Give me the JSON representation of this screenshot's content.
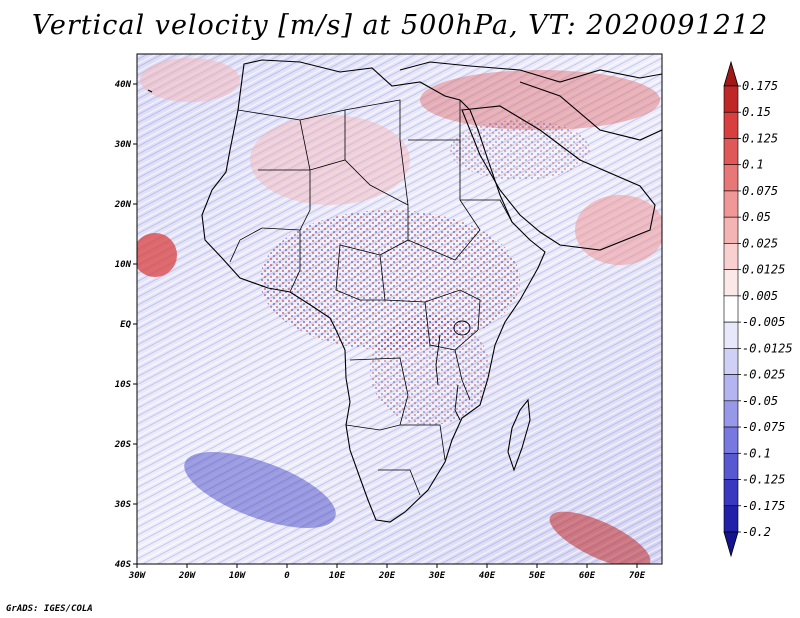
{
  "title": "Vertical velocity [m/s] at 500hPa, VT: 2020091212",
  "credit": "GrADS: IGES/COLA",
  "map": {
    "lon_range": [
      -30,
      75
    ],
    "lat_range": [
      -40,
      45
    ],
    "lat_ticks": [
      {
        "value": 40,
        "label": "40N"
      },
      {
        "value": 30,
        "label": "30N"
      },
      {
        "value": 20,
        "label": "20N"
      },
      {
        "value": 10,
        "label": "10N"
      },
      {
        "value": 0,
        "label": "EQ"
      },
      {
        "value": -10,
        "label": "10S"
      },
      {
        "value": -20,
        "label": "20S"
      },
      {
        "value": -30,
        "label": "30S"
      },
      {
        "value": -40,
        "label": "40S"
      }
    ],
    "lon_ticks": [
      {
        "value": -30,
        "label": "30W"
      },
      {
        "value": -20,
        "label": "20W"
      },
      {
        "value": -10,
        "label": "10W"
      },
      {
        "value": 0,
        "label": "0"
      },
      {
        "value": 10,
        "label": "10E"
      },
      {
        "value": 20,
        "label": "20E"
      },
      {
        "value": 30,
        "label": "30E"
      },
      {
        "value": 40,
        "label": "40E"
      },
      {
        "value": 50,
        "label": "50E"
      },
      {
        "value": 60,
        "label": "60E"
      },
      {
        "value": 70,
        "label": "70E"
      }
    ]
  },
  "colorbar": {
    "labels": [
      "0.175",
      "0.15",
      "0.125",
      "0.1",
      "0.075",
      "0.05",
      "0.025",
      "0.0125",
      "0.005",
      "-0.005",
      "-0.0125",
      "-0.025",
      "-0.05",
      "-0.075",
      "-0.1",
      "-0.125",
      "-0.175",
      "-0.2"
    ],
    "colors": [
      "#a01818",
      "#c02828",
      "#d84040",
      "#e05858",
      "#e87878",
      "#f09898",
      "#f4b4b4",
      "#f8d0d0",
      "#fbe8e8",
      "#ffffff",
      "#e8e8fb",
      "#d0d0f6",
      "#b4b4f0",
      "#9898e8",
      "#7878e0",
      "#5858d0",
      "#3838c0",
      "#2020a8",
      "#141490"
    ]
  }
}
